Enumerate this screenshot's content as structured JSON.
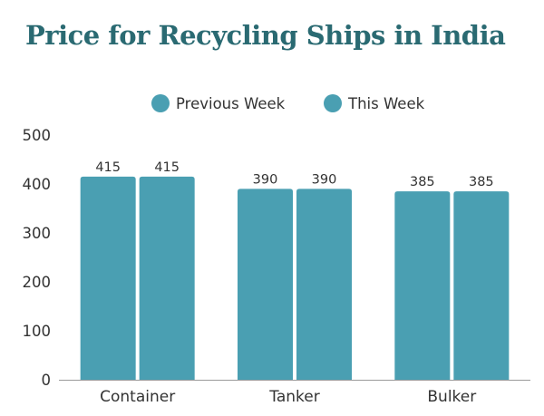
{
  "title": "Price for Recycling Ships in India",
  "colors": {
    "title": "#2a6a72",
    "series": [
      "#4a9fb2",
      "#4a9fb2"
    ]
  },
  "legend": [
    {
      "label": "Previous Week"
    },
    {
      "label": "This Week"
    }
  ],
  "chart_data": {
    "type": "bar",
    "title": "Price for Recycling Ships in India",
    "categories": [
      "Container",
      "Tanker",
      "Bulker"
    ],
    "series": [
      {
        "name": "Previous Week",
        "values": [
          415,
          390,
          385
        ]
      },
      {
        "name": "This Week",
        "values": [
          415,
          390,
          385
        ]
      }
    ],
    "ylim": [
      0,
      500
    ],
    "yticks": [
      0,
      100,
      200,
      300,
      400,
      500
    ],
    "grid": false,
    "legend_position": "top-center",
    "data_labels": true
  }
}
